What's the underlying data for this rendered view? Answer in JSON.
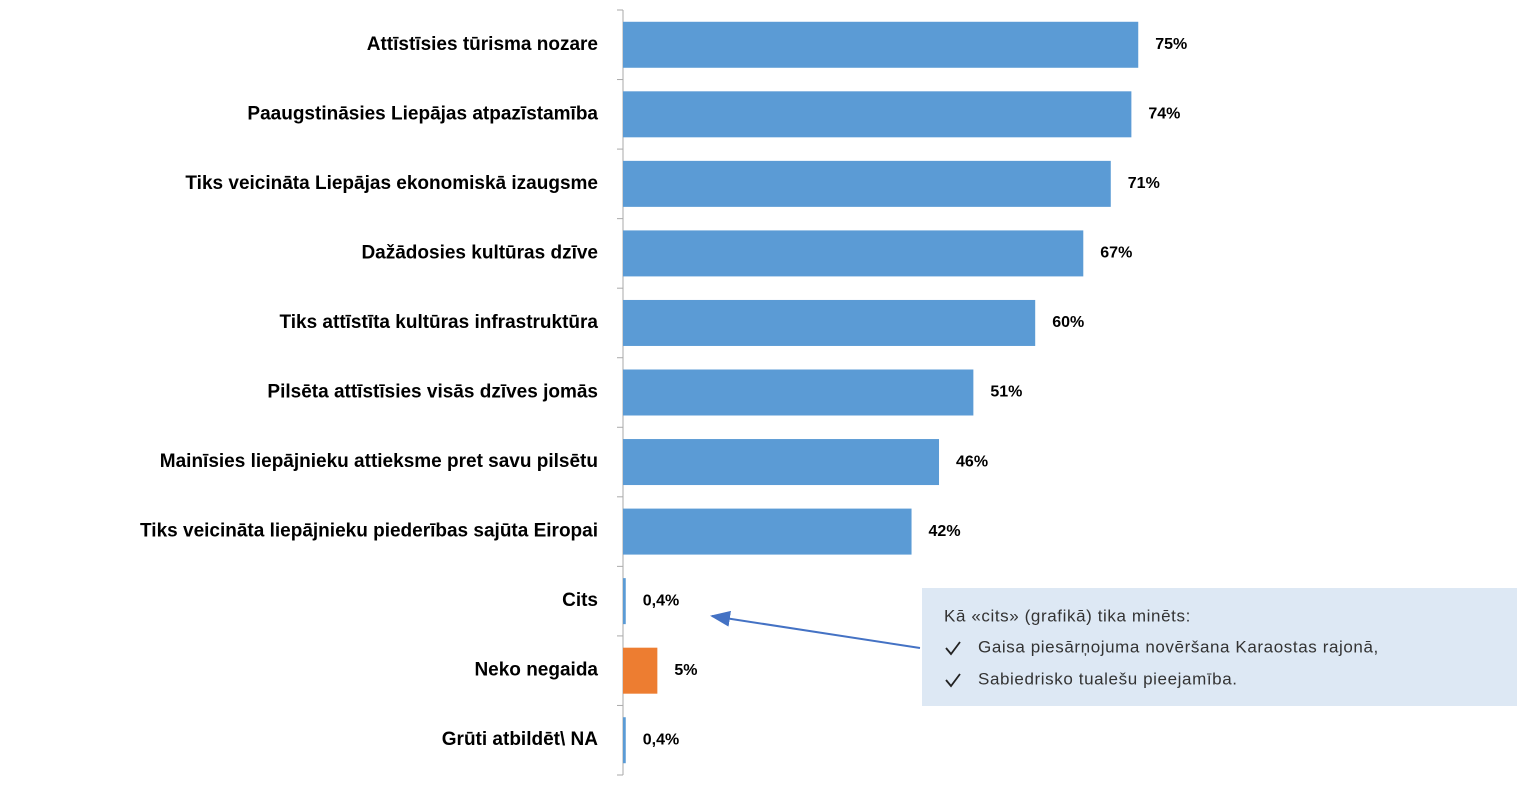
{
  "chart_data": {
    "type": "bar",
    "orientation": "horizontal",
    "categories": [
      "Attīstīsies tūrisma nozare",
      "Paaugstināsies Liepājas atpazīstamība",
      "Tiks veicināta Liepājas ekonomiskā izaugsme",
      "Dažādosies kultūras dzīve",
      "Tiks attīstīta kultūras infrastruktūra",
      "Pilsēta attīstīsies visās dzīves jomās",
      "Mainīsies liepājnieku attieksme pret savu pilsētu",
      "Tiks veicināta liepājnieku piederības sajūta Eiropai",
      "Cits",
      "Neko negaida",
      "Grūti atbildēt\\ NA"
    ],
    "values": [
      75,
      74,
      71,
      67,
      60,
      51,
      46,
      42,
      0.4,
      5,
      0.4
    ],
    "value_labels": [
      "75%",
      "74%",
      "71%",
      "67%",
      "60%",
      "51%",
      "46%",
      "42%",
      "0,4%",
      "5%",
      "0,4%"
    ],
    "colors": [
      "#5b9bd5",
      "#5b9bd5",
      "#5b9bd5",
      "#5b9bd5",
      "#5b9bd5",
      "#5b9bd5",
      "#5b9bd5",
      "#5b9bd5",
      "#5b9bd5",
      "#ed7d31",
      "#5b9bd5"
    ],
    "xlim": [
      0,
      100
    ],
    "annotation": {
      "title": "Kā «cits» (grafikā) tika minēts:",
      "items": [
        "Gaisa piesārņojuma novēršana Karaostas rajonā,",
        "Sabiedrisko tualešu pieejamība."
      ]
    }
  }
}
